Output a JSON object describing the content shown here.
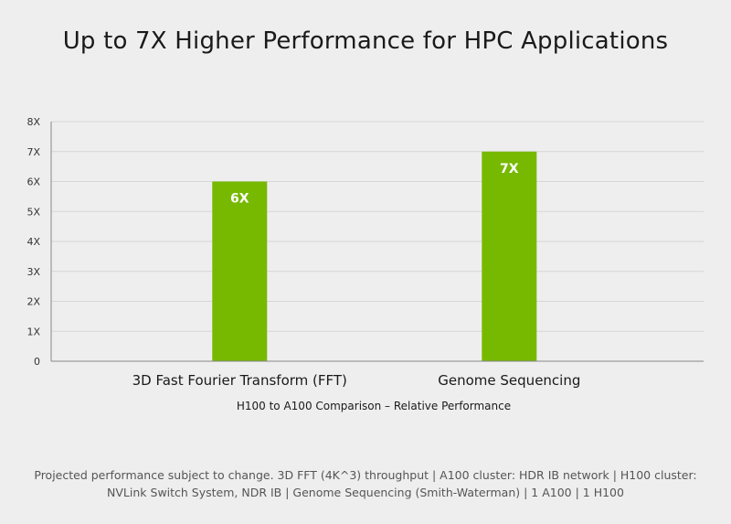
{
  "chart_data": {
    "type": "bar",
    "title": "Up to 7X Higher Performance for HPC Applications",
    "categories": [
      "3D Fast Fourier Transform (FFT)",
      "Genome Sequencing"
    ],
    "values": [
      6,
      7
    ],
    "data_labels": [
      "6X",
      "7X"
    ],
    "xlabel": "H100 to A100 Comparison – Relative Performance",
    "ylabel": "",
    "ylim": [
      0,
      8
    ],
    "yticks": [
      "0",
      "1X",
      "2X",
      "3X",
      "4X",
      "5X",
      "6X",
      "7X",
      "8X"
    ],
    "grid": true,
    "bar_color": "#76b900",
    "gridline_color": "#d6d6d6",
    "axis_color": "#888888"
  },
  "footnote": {
    "line1": "Projected performance subject to change. 3D FFT (4K^3) throughput | A100 cluster: HDR IB network | H100 cluster:",
    "line2": "NVLink Switch System, NDR IB | Genome Sequencing (Smith-Waterman) | 1 A100 | 1 H100"
  }
}
